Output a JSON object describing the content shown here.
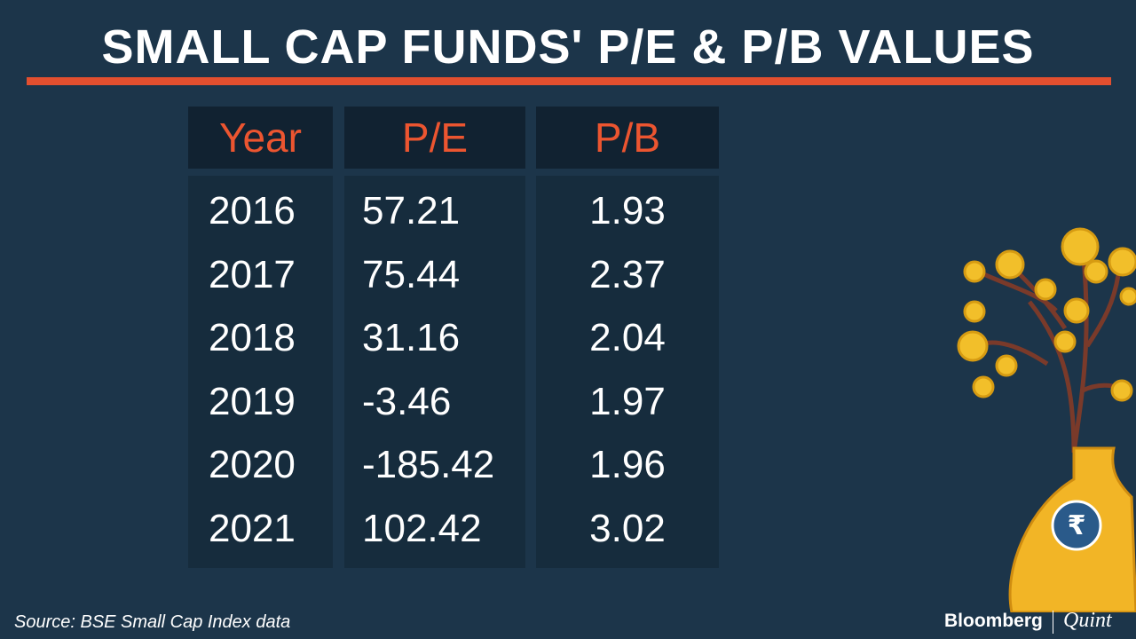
{
  "header": {
    "title": "SMALL CAP FUNDS' P/E & P/B VALUES"
  },
  "table": {
    "columns": [
      "Year",
      "P/E",
      "P/B"
    ],
    "rows": [
      [
        "2016",
        "57.21",
        "1.93"
      ],
      [
        "2017",
        "75.44",
        "2.37"
      ],
      [
        "2018",
        "31.16",
        "2.04"
      ],
      [
        "2019",
        "-3.46",
        "1.97"
      ],
      [
        "2020",
        "-185.42",
        "1.96"
      ],
      [
        "2021",
        "102.42",
        "3.02"
      ]
    ]
  },
  "footer": {
    "source": "Source: BSE Small Cap Index data",
    "brand": "Bloomberg",
    "brand_suffix": "Quint"
  }
}
